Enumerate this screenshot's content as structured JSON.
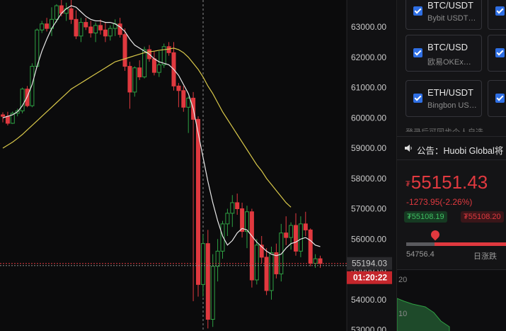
{
  "chart": {
    "price_ticks": [
      "63000.00",
      "62000.00",
      "61000.00",
      "60000.00",
      "59000.00",
      "58000.00",
      "57000.00",
      "56000.00",
      "55000.00",
      "54000.00",
      "53000.00"
    ],
    "tick_values": [
      63000,
      62000,
      61000,
      60000,
      59000,
      58000,
      57000,
      56000,
      55000,
      54000,
      53000
    ],
    "current_price_label": "55194.03",
    "current_price": 55194.03,
    "countdown_label": "01:20:22",
    "colors": {
      "up": "#2ea043",
      "down": "#e0393f",
      "ma_short": "#e8e8e8",
      "ma_long": "#d9c84a",
      "axis_bg": "#0b0b0c"
    },
    "candles": [
      [
        60100,
        60180,
        59850,
        60050
      ],
      [
        60050,
        60200,
        59750,
        59820
      ],
      [
        59820,
        60210,
        59800,
        60150
      ],
      [
        60150,
        60300,
        60050,
        60230
      ],
      [
        60230,
        61000,
        60150,
        60950
      ],
      [
        60950,
        61050,
        60350,
        60400
      ],
      [
        60400,
        61800,
        60350,
        61700
      ],
      [
        61700,
        62950,
        61650,
        62900
      ],
      [
        62900,
        63200,
        62800,
        63100
      ],
      [
        63100,
        63300,
        62850,
        62950
      ],
      [
        62950,
        63650,
        62700,
        63250
      ],
      [
        63250,
        63750,
        63150,
        63700
      ],
      [
        63700,
        63950,
        63350,
        63450
      ],
      [
        63450,
        63800,
        63200,
        63600
      ],
      [
        63600,
        63900,
        63100,
        63250
      ],
      [
        63250,
        63550,
        62600,
        62700
      ],
      [
        62700,
        63300,
        62500,
        63150
      ],
      [
        63150,
        63300,
        62900,
        63000
      ],
      [
        63000,
        63200,
        62650,
        62800
      ],
      [
        62800,
        63150,
        62500,
        63050
      ],
      [
        63050,
        63250,
        62750,
        62900
      ],
      [
        62900,
        63150,
        62500,
        62700
      ],
      [
        62700,
        63050,
        62550,
        62950
      ],
      [
        62950,
        63250,
        62700,
        63100
      ],
      [
        63100,
        63300,
        62650,
        62750
      ],
      [
        62750,
        62950,
        61550,
        61700
      ],
      [
        61700,
        61850,
        60300,
        60850
      ],
      [
        60850,
        61700,
        60700,
        61650
      ],
      [
        61650,
        61900,
        61250,
        61350
      ],
      [
        61350,
        62350,
        61300,
        62250
      ],
      [
        62250,
        62400,
        61850,
        61950
      ],
      [
        61950,
        62200,
        61400,
        61500
      ],
      [
        61500,
        62200,
        61350,
        61750
      ],
      [
        61750,
        62450,
        61650,
        62350
      ],
      [
        62350,
        62500,
        62050,
        62150
      ],
      [
        62150,
        62500,
        60900,
        61050
      ],
      [
        61050,
        61150,
        60350,
        60900
      ],
      [
        60900,
        61050,
        60200,
        60350
      ],
      [
        60350,
        60700,
        59500,
        60650
      ],
      [
        60650,
        60850,
        53950,
        59950
      ],
      [
        59950,
        60050,
        54100,
        54500
      ],
      [
        54500,
        56150,
        54100,
        55850
      ],
      [
        55850,
        56300,
        53050,
        53350
      ],
      [
        53350,
        55500,
        53100,
        55100
      ],
      [
        55100,
        56000,
        54600,
        55600
      ],
      [
        55600,
        56600,
        55350,
        56500
      ],
      [
        56500,
        57000,
        56100,
        56850
      ],
      [
        56850,
        57450,
        56400,
        57200
      ],
      [
        57200,
        57500,
        56800,
        57000
      ],
      [
        57000,
        57200,
        56050,
        56250
      ],
      [
        56250,
        57100,
        55700,
        56900
      ],
      [
        56900,
        57000,
        54400,
        54650
      ],
      [
        54650,
        56000,
        54500,
        55800
      ],
      [
        55800,
        56100,
        55200,
        55400
      ],
      [
        55400,
        55700,
        54150,
        54300
      ],
      [
        54300,
        55750,
        54000,
        55550
      ],
      [
        55550,
        55850,
        54700,
        54850
      ],
      [
        54850,
        56500,
        54600,
        56200
      ],
      [
        56200,
        56750,
        55800,
        56050
      ],
      [
        56050,
        56550,
        55650,
        56450
      ],
      [
        56450,
        56850,
        55450,
        55600
      ],
      [
        55600,
        56750,
        55400,
        56500
      ],
      [
        56500,
        56900,
        56100,
        56300
      ],
      [
        56300,
        56350,
        55100,
        55200
      ],
      [
        55200,
        55500,
        55050,
        55350
      ],
      [
        55350,
        55450,
        55050,
        55194
      ]
    ],
    "ma_short": [
      60000,
      60050,
      60100,
      60200,
      60400,
      60700,
      61100,
      61700,
      62200,
      62600,
      62950,
      63200,
      63450,
      63600,
      63700,
      63650,
      63500,
      63350,
      63250,
      63200,
      63200,
      63150,
      63150,
      63100,
      63000,
      62850,
      62600,
      62400,
      62300,
      62200,
      62100,
      61950,
      61850,
      61800,
      61750,
      61600,
      61400,
      61100,
      60800,
      60300,
      59500,
      58700,
      57900,
      57200,
      56600,
      56100,
      55800,
      55950,
      56200,
      56350,
      56300,
      56100,
      55900,
      55750,
      55600,
      55500,
      55450,
      55500,
      55700,
      55850,
      55900,
      56000,
      56050,
      55950,
      55800,
      55750
    ],
    "ma_long": [
      59000,
      59100,
      59200,
      59320,
      59450,
      59600,
      59750,
      59900,
      60050,
      60200,
      60350,
      60500,
      60650,
      60800,
      60950,
      61050,
      61150,
      61250,
      61350,
      61450,
      61550,
      61650,
      61750,
      61850,
      61900,
      61950,
      62000,
      62050,
      62100,
      62150,
      62180,
      62200,
      62230,
      62250,
      62270,
      62300,
      62250,
      62150,
      62000,
      61800,
      61600,
      61350,
      61050,
      60800,
      60500,
      60200,
      59950,
      59700,
      59450,
      59200,
      58950,
      58700,
      58450,
      58250,
      58000,
      57800,
      57600,
      57400,
      57200,
      57050
    ]
  },
  "sidebar": {
    "cards": [
      {
        "symbol": "BTC/USDT",
        "exchange": "Bybit USDT…"
      },
      {
        "symbol": "BTC/USD",
        "exchange": "欧易OKEx…"
      },
      {
        "symbol": "ETH/USDT",
        "exchange": "Bingbon US…"
      }
    ],
    "login_hint": "登录后可同步个人自选"
  },
  "notice": {
    "text": "公告：Huobi Global将"
  },
  "ticker": {
    "currency_symbol": "₮",
    "price": "55151.43",
    "change": "-1273.95(-2.26%)",
    "bid": "₮55108.19",
    "ask": "₮55108.20",
    "low": "54756.4",
    "range_label": "日涨跌",
    "range_fraction": 0.25
  },
  "depth": {
    "labels": [
      "20",
      "10"
    ]
  }
}
